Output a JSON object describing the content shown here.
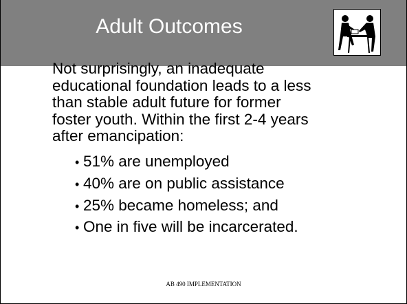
{
  "header": {
    "title": "Adult Outcomes"
  },
  "body": {
    "paragraph_lines": [
      "Not surprisingly, an inadequate",
      "educational foundation leads to a less",
      "than stable adult future for former",
      "foster youth. Within the first 2-4 years",
      "after emancipation:"
    ],
    "bullets": [
      "51% are unemployed",
      "40% are on public assistance",
      "25% became homeless; and",
      "One in five will be incarcerated."
    ]
  },
  "footer": "AB 490 IMPLEMENTATION"
}
